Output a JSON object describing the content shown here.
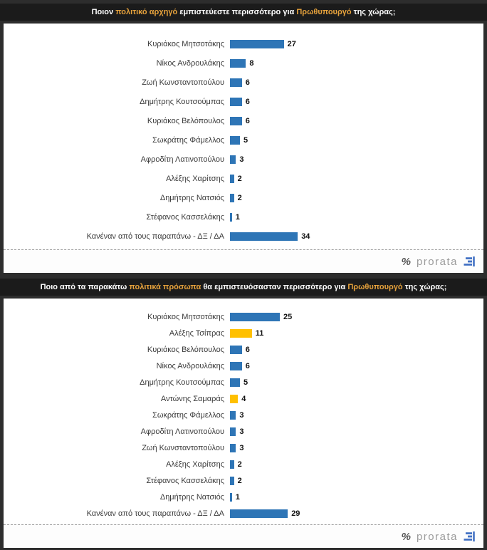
{
  "colors": {
    "blue": "#2E75B6",
    "gold": "#FFC000",
    "title_highlight": "#E8A33C",
    "header_bg": "#1B1B1B",
    "page_bg": "#2D2D2D",
    "mark_blue": "#4472C4"
  },
  "branding": {
    "percent_symbol": "%",
    "name": "prorata",
    "mark_icon": "bar-lines-icon"
  },
  "chart_data": [
    {
      "type": "bar",
      "orientation": "horizontal",
      "title": "Ποιον πολιτικό αρχηγό εμπιστεύεστε περισσότερο για Πρωθυπουργό της χώρας;",
      "title_parts": [
        {
          "text": "Ποιον ",
          "highlight": false
        },
        {
          "text": "πολιτικό αρχηγό",
          "highlight": true
        },
        {
          "text": " εμπιστεύεστε περισσότερο για ",
          "highlight": false
        },
        {
          "text": "Πρωθυπουργό",
          "highlight": true
        },
        {
          "text": " της χώρας;",
          "highlight": false
        }
      ],
      "categories": [
        "Κυριάκος Μητσοτάκης",
        "Νίκος Ανδρουλάκης",
        "Ζωή Κωνσταντοπούλου",
        "Δημήτρης Κουτσούμπας",
        "Κυριάκος Βελόπουλος",
        "Σωκράτης Φάμελλος",
        "Αφροδίτη Λατινοπούλου",
        "Αλέξης Χαρίτσης",
        "Δημήτρης Νατσιός",
        "Στέφανος Κασσελάκης",
        "Κανέναν από τους παραπάνω - ΔΞ / ΔΑ"
      ],
      "values": [
        27,
        8,
        6,
        6,
        6,
        5,
        3,
        2,
        2,
        1,
        34
      ],
      "bar_color_keys": [
        "blue",
        "blue",
        "blue",
        "blue",
        "blue",
        "blue",
        "blue",
        "blue",
        "blue",
        "blue",
        "blue"
      ],
      "xlim": [
        0,
        120
      ],
      "grid": false,
      "value_labels": true
    },
    {
      "type": "bar",
      "orientation": "horizontal",
      "title": "Ποιο από τα παρακάτω πολιτικά πρόσωπα θα εμπιστευόσασταν περισσότερο για Πρωθυπουργό της χώρας;",
      "title_parts": [
        {
          "text": "Ποιο από τα παρακάτω ",
          "highlight": false
        },
        {
          "text": "πολιτικά πρόσωπα",
          "highlight": true
        },
        {
          "text": " θα εμπιστευόσασταν περισσότερο για ",
          "highlight": false
        },
        {
          "text": "Πρωθυπουργό",
          "highlight": true
        },
        {
          "text": " της χώρας;",
          "highlight": false
        }
      ],
      "categories": [
        "Κυριάκος Μητσοτάκης",
        "Αλέξης Τσίπρας",
        "Κυριάκος Βελόπουλος",
        "Νίκος Ανδρουλάκης",
        "Δημήτρης Κουτσούμπας",
        "Αντώνης Σαμαράς",
        "Σωκράτης Φάμελλος",
        "Αφροδίτη Λατινοπούλου",
        "Ζωή Κωνσταντοπούλου",
        "Αλέξης Χαρίτσης",
        "Στέφανος Κασσελάκης",
        "Δημήτρης Νατσιός",
        "Κανέναν από τους παραπάνω - ΔΞ / ΔΑ"
      ],
      "values": [
        25,
        11,
        6,
        6,
        5,
        4,
        3,
        3,
        3,
        2,
        2,
        1,
        29
      ],
      "bar_color_keys": [
        "blue",
        "gold",
        "blue",
        "blue",
        "blue",
        "gold",
        "blue",
        "blue",
        "blue",
        "blue",
        "blue",
        "blue",
        "blue"
      ],
      "xlim": [
        0,
        120
      ],
      "grid": false,
      "value_labels": true
    }
  ]
}
